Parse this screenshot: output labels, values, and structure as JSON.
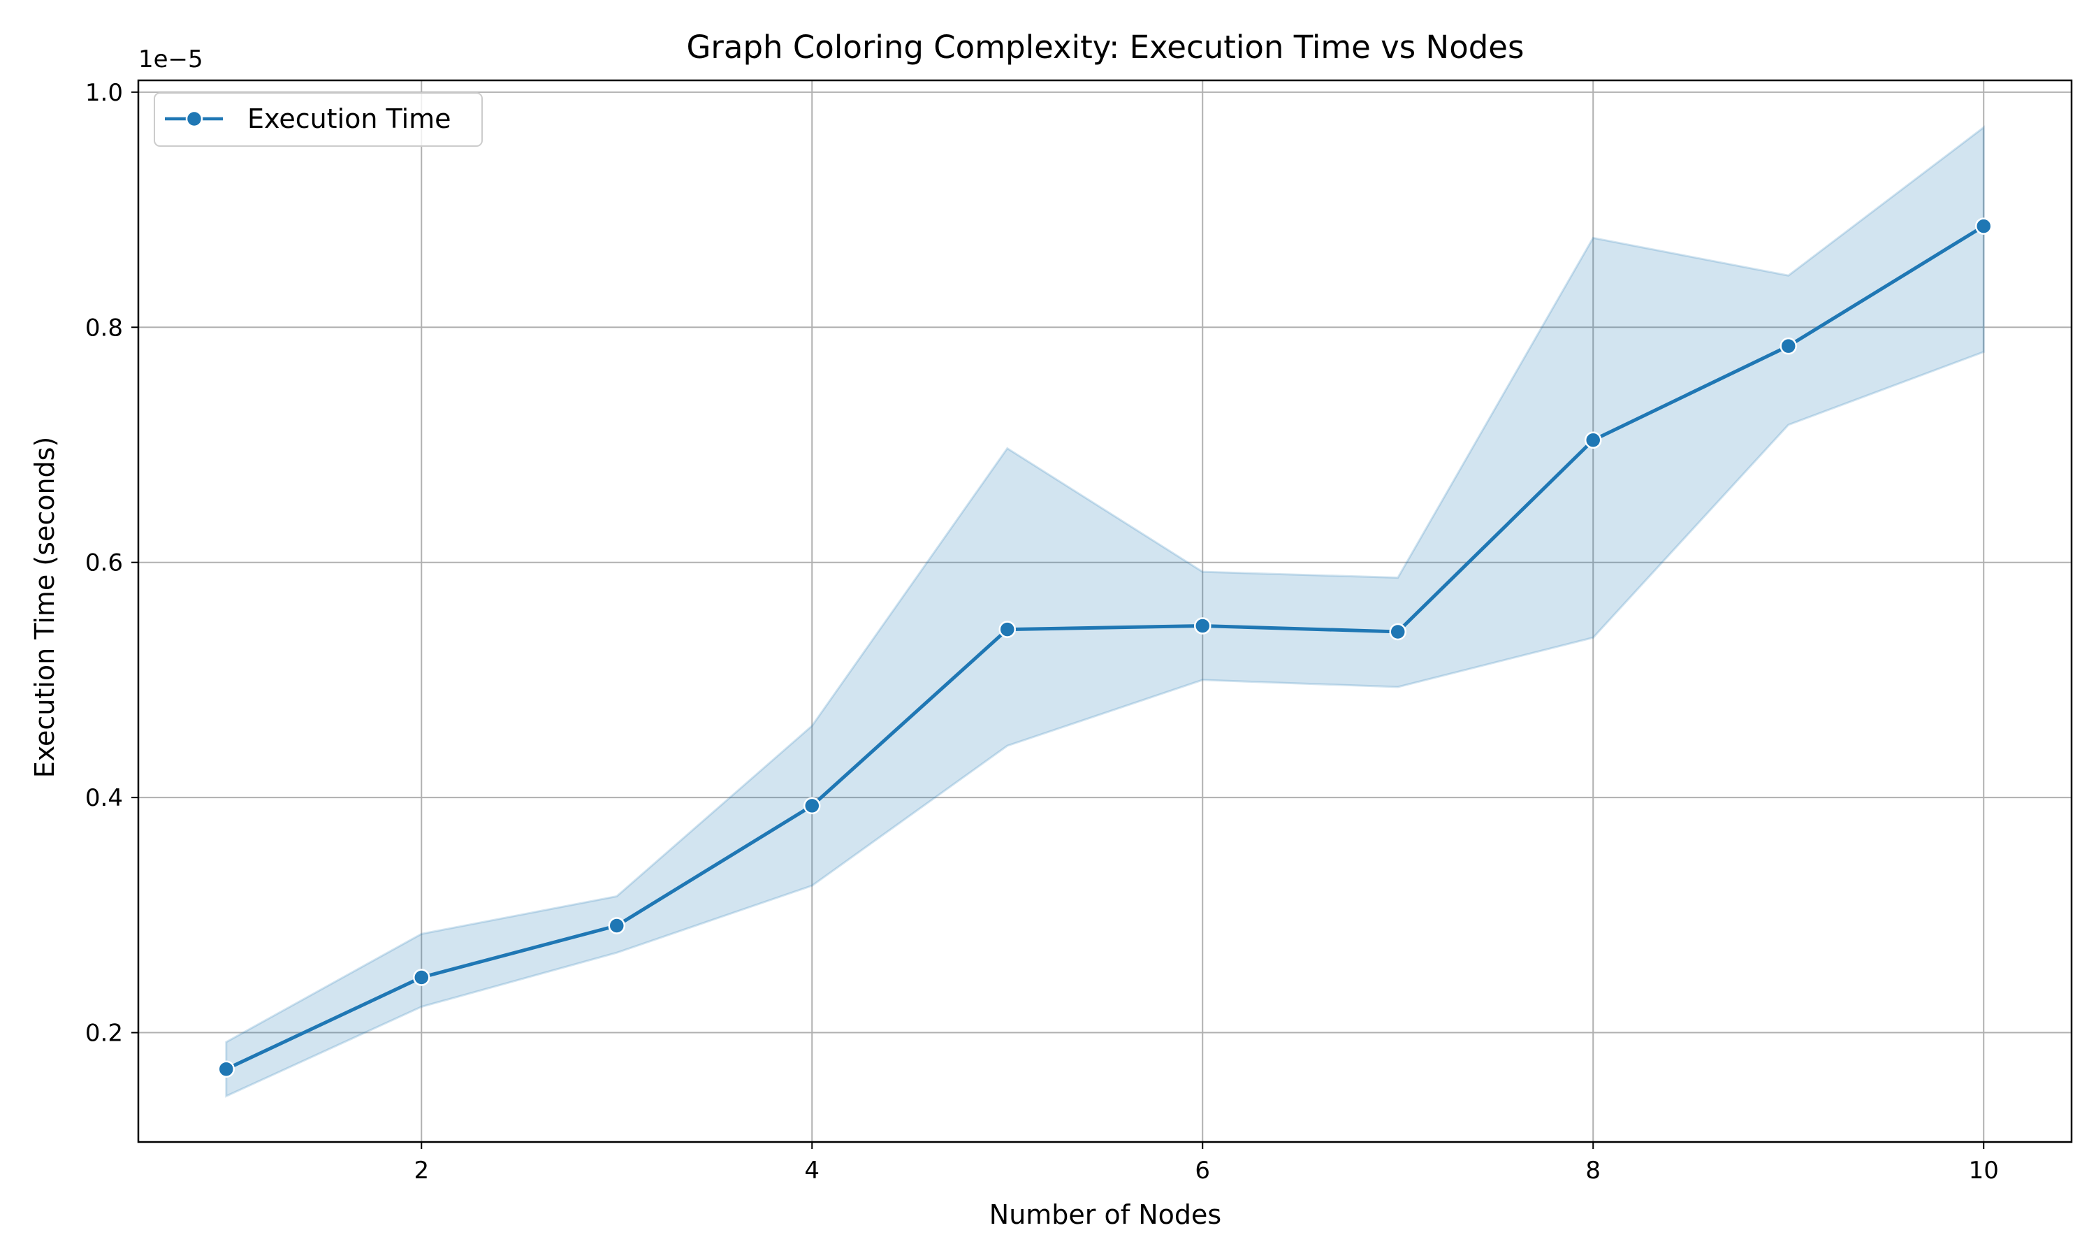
{
  "chart_data": {
    "type": "line",
    "title": "Graph Coloring Complexity: Execution Time vs Nodes",
    "xlabel": "Number of Nodes",
    "ylabel": "Execution Time (seconds)",
    "y_offset_label": "1e−5",
    "y_scale": 1e-05,
    "xlim": [
      0.55,
      10.45
    ],
    "ylim": [
      1.07e-06,
      1.01e-05
    ],
    "xticks": [
      2,
      4,
      6,
      8,
      10
    ],
    "xtick_labels": [
      "2",
      "4",
      "6",
      "8",
      "10"
    ],
    "yticks": [
      2e-06,
      4e-06,
      6e-06,
      8e-06,
      1e-05
    ],
    "ytick_labels": [
      "0.2",
      "0.4",
      "0.6",
      "0.8",
      "1.0"
    ],
    "grid": true,
    "legend_position": "upper-left",
    "series": [
      {
        "name": "Execution Time",
        "color": "#1f77b4",
        "x": [
          1,
          2,
          3,
          4,
          5,
          6,
          7,
          8,
          9,
          10
        ],
        "y": [
          1.69e-06,
          2.47e-06,
          2.91e-06,
          3.93e-06,
          5.43e-06,
          5.46e-06,
          5.41e-06,
          7.04e-06,
          7.84e-06,
          8.86e-06
        ],
        "band_upper": [
          1.92e-06,
          2.84e-06,
          3.16e-06,
          4.61e-06,
          6.97e-06,
          5.92e-06,
          5.87e-06,
          8.76e-06,
          8.44e-06,
          9.7e-06
        ],
        "band_lower": [
          1.46e-06,
          2.22e-06,
          2.68e-06,
          3.25e-06,
          4.44e-06,
          5e-06,
          4.94e-06,
          5.36e-06,
          7.17e-06,
          7.79e-06
        ]
      }
    ]
  }
}
